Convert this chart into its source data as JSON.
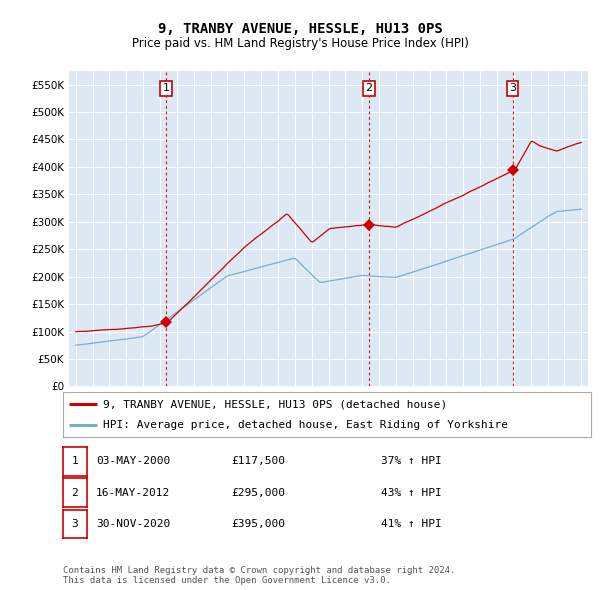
{
  "title": "9, TRANBY AVENUE, HESSLE, HU13 0PS",
  "subtitle": "Price paid vs. HM Land Registry's House Price Index (HPI)",
  "yticks": [
    0,
    50000,
    100000,
    150000,
    200000,
    250000,
    300000,
    350000,
    400000,
    450000,
    500000,
    550000
  ],
  "ylim": [
    0,
    575000
  ],
  "xlim_start": 1994.6,
  "xlim_end": 2025.4,
  "background_color": "#ffffff",
  "plot_bg_color": "#dce9f5",
  "grid_color": "#ffffff",
  "sale_color": "#cc0000",
  "hpi_color": "#7aadcf",
  "sale_dates": [
    2000.37,
    2012.38,
    2020.92
  ],
  "sale_prices": [
    117500,
    295000,
    395000
  ],
  "sale_labels": [
    "1",
    "2",
    "3"
  ],
  "vline_color": "#cc0000",
  "legend_entries": [
    "9, TRANBY AVENUE, HESSLE, HU13 0PS (detached house)",
    "HPI: Average price, detached house, East Riding of Yorkshire"
  ],
  "table_rows": [
    [
      "1",
      "03-MAY-2000",
      "£117,500",
      "37% ↑ HPI"
    ],
    [
      "2",
      "16-MAY-2012",
      "£295,000",
      "43% ↑ HPI"
    ],
    [
      "3",
      "30-NOV-2020",
      "£395,000",
      "41% ↑ HPI"
    ]
  ],
  "footnote": "Contains HM Land Registry data © Crown copyright and database right 2024.\nThis data is licensed under the Open Government Licence v3.0.",
  "title_fontsize": 10,
  "subtitle_fontsize": 8.5,
  "tick_fontsize": 7.5,
  "legend_fontsize": 8,
  "table_fontsize": 8,
  "footnote_fontsize": 6.5
}
